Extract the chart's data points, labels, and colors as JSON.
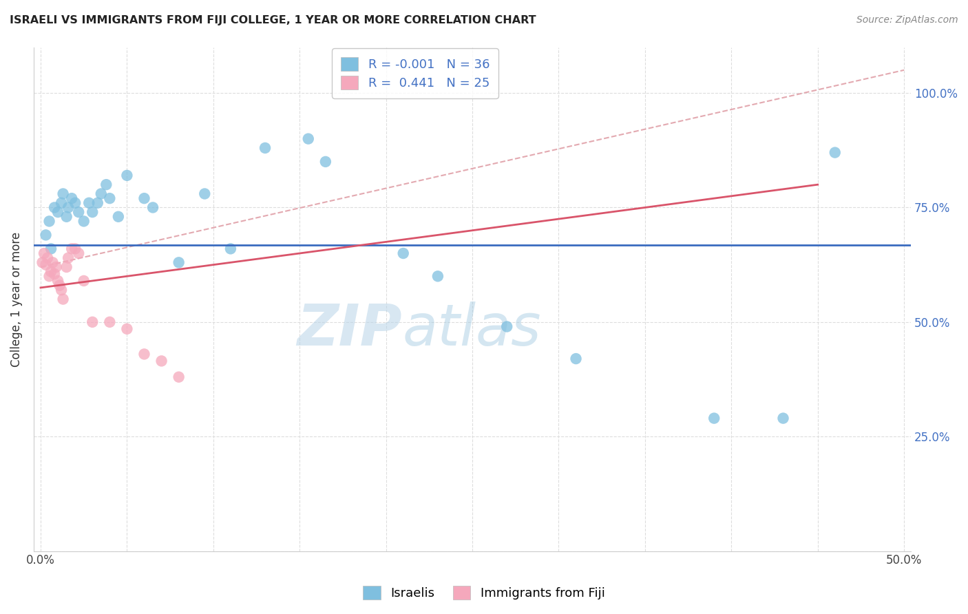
{
  "title": "ISRAELI VS IMMIGRANTS FROM FIJI COLLEGE, 1 YEAR OR MORE CORRELATION CHART",
  "source": "Source: ZipAtlas.com",
  "ylabel": "College, 1 year or more",
  "watermark_zip": "ZIP",
  "watermark_atlas": "atlas",
  "legend_blue_label": "Israelis",
  "legend_pink_label": "Immigrants from Fiji",
  "R_blue": "-0.001",
  "N_blue": "36",
  "R_pink": "0.441",
  "N_pink": "25",
  "blue_scatter_color": "#7fbfdf",
  "pink_scatter_color": "#f5a8bc",
  "blue_line_color": "#3a6bbf",
  "pink_line_color": "#d9546a",
  "dashed_line_color": "#e0a0a8",
  "right_tick_color": "#4472c4",
  "blue_hline_y": 0.668,
  "pink_line_x0": 0.0,
  "pink_line_y0": 0.575,
  "pink_line_x1": 0.45,
  "pink_line_y1": 0.8,
  "dash_line_x0": 0.0,
  "dash_line_y0": 0.62,
  "dash_line_x1": 0.5,
  "dash_line_y1": 1.05,
  "israelis_x": [
    0.003,
    0.005,
    0.006,
    0.008,
    0.01,
    0.012,
    0.013,
    0.015,
    0.016,
    0.018,
    0.02,
    0.022,
    0.025,
    0.028,
    0.03,
    0.033,
    0.035,
    0.038,
    0.04,
    0.045,
    0.05,
    0.06,
    0.065,
    0.08,
    0.095,
    0.11,
    0.13,
    0.155,
    0.165,
    0.21,
    0.23,
    0.27,
    0.31,
    0.39,
    0.43,
    0.46
  ],
  "israelis_y": [
    0.69,
    0.72,
    0.66,
    0.75,
    0.74,
    0.76,
    0.78,
    0.73,
    0.75,
    0.77,
    0.76,
    0.74,
    0.72,
    0.76,
    0.74,
    0.76,
    0.78,
    0.8,
    0.77,
    0.73,
    0.82,
    0.77,
    0.75,
    0.63,
    0.78,
    0.66,
    0.88,
    0.9,
    0.85,
    0.65,
    0.6,
    0.49,
    0.42,
    0.29,
    0.29,
    0.87
  ],
  "fiji_x": [
    0.001,
    0.002,
    0.003,
    0.004,
    0.005,
    0.006,
    0.007,
    0.008,
    0.009,
    0.01,
    0.011,
    0.012,
    0.013,
    0.015,
    0.016,
    0.018,
    0.02,
    0.022,
    0.025,
    0.03,
    0.04,
    0.05,
    0.06,
    0.07,
    0.08
  ],
  "fiji_y": [
    0.63,
    0.65,
    0.625,
    0.64,
    0.6,
    0.61,
    0.63,
    0.605,
    0.62,
    0.59,
    0.58,
    0.57,
    0.55,
    0.62,
    0.64,
    0.66,
    0.66,
    0.65,
    0.59,
    0.5,
    0.5,
    0.485,
    0.43,
    0.415,
    0.38
  ],
  "xlim": [
    -0.004,
    0.504
  ],
  "ylim": [
    0.0,
    1.1
  ],
  "x_ticks": [
    0.0,
    0.05,
    0.1,
    0.15,
    0.2,
    0.25,
    0.3,
    0.35,
    0.4,
    0.45,
    0.5
  ],
  "x_tick_labels": [
    "0.0%",
    "",
    "",
    "",
    "",
    "",
    "",
    "",
    "",
    "",
    "50.0%"
  ],
  "y_ticks": [
    0.0,
    0.25,
    0.5,
    0.75,
    1.0
  ],
  "y_tick_labels_right": [
    "",
    "25.0%",
    "50.0%",
    "75.0%",
    "100.0%"
  ]
}
